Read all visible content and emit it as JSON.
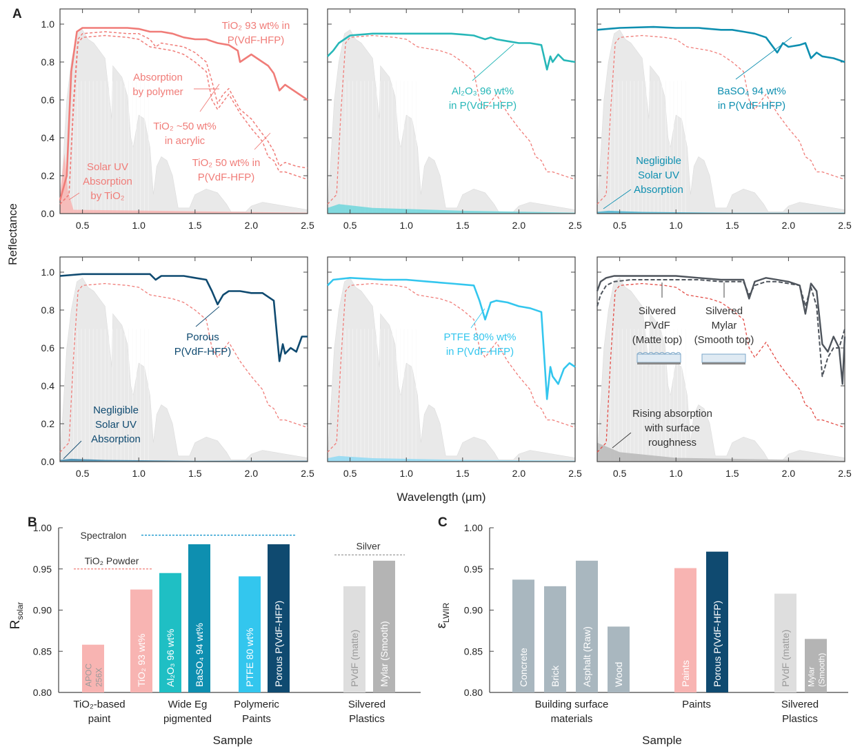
{
  "colors": {
    "salmon": "#f07c78",
    "salmon_fill": "#f8b4b2",
    "teal": "#27b7b8",
    "teal_bar": "#1fbfc4",
    "blue": "#0e8fb0",
    "navy": "#0f4a70",
    "sky": "#33c6ee",
    "gray_dark": "#4e545c",
    "gray_bar": "#a9b7bf",
    "spectrum": "#e9e9e9",
    "spectralon": "#2a9fd0",
    "silver_ref": "#a8a8a8"
  },
  "panel_a": {
    "label": "A",
    "ylabel": "Reflectance",
    "xlabel": "Wavelength (µm)",
    "x_ticks": [
      "0.5",
      "1.0",
      "1.5",
      "2.0",
      "2.5"
    ],
    "y_ticks": [
      "0.0",
      "0.2",
      "0.4",
      "0.6",
      "0.8",
      "1.0"
    ],
    "xlim": [
      0.3,
      2.5
    ],
    "ylim": [
      0,
      1.08
    ],
    "subplots": [
      {
        "key": "tio2",
        "annotations": [
          {
            "lines": [
              "TiO2 93 wt% in",
              "P(VdF-HFP)"
            ],
            "sub": "TiO₂ 93 wt% in"
          },
          {
            "lines": [
              "Absorption",
              "by polymer"
            ]
          },
          {
            "lines": [
              "TiO₂ ~50 wt%",
              "in acrylic"
            ]
          },
          {
            "lines": [
              "TiO₂ 50 wt% in",
              "P(VdF-HFP)"
            ]
          },
          {
            "lines": [
              "Solar UV",
              "Absorption",
              "by TiO₂"
            ]
          }
        ]
      },
      {
        "key": "al2o3",
        "annotations": [
          {
            "lines": [
              "Al₂O₃ 96 wt%",
              "in P(VdF-HFP)"
            ]
          }
        ]
      },
      {
        "key": "baso4",
        "annotations": [
          {
            "lines": [
              "BaSO₄ 94 wt%",
              "in P(VdF-HFP)"
            ]
          },
          {
            "lines": [
              "Negligible",
              "Solar UV",
              "Absorption"
            ]
          }
        ]
      },
      {
        "key": "porous",
        "annotations": [
          {
            "lines": [
              "Porous",
              "P(VdF-HFP)"
            ]
          },
          {
            "lines": [
              "Negligible",
              "Solar UV",
              "Absorption"
            ]
          }
        ]
      },
      {
        "key": "ptfe",
        "annotations": [
          {
            "lines": [
              "PTFE 80% wt%",
              "in P(VdF-HFP)"
            ]
          }
        ]
      },
      {
        "key": "silver",
        "annotations": [
          {
            "lines": [
              "Silvered",
              "PVdF",
              "(Matte top)"
            ]
          },
          {
            "lines": [
              "Silvered",
              "Mylar",
              "(Smooth top)"
            ]
          },
          {
            "lines": [
              "Rising absorption",
              "with surface",
              "roughness"
            ]
          }
        ]
      }
    ]
  },
  "panel_b": {
    "label": "B",
    "ylabel": "R",
    "ylabel_sub": "solar",
    "xlabel": "Sample",
    "ylim": [
      0.8,
      1.0
    ],
    "y_ticks": [
      "0.80",
      "0.85",
      "0.90",
      "0.95",
      "1.00"
    ],
    "bars": [
      {
        "label": "APOC 256X",
        "value": 0.858,
        "color": "#f8b4b2",
        "label_color": "#9a9a9a"
      },
      {
        "label": "TiO₂ 93 wt%",
        "value": 0.925,
        "color": "#f8b4b2",
        "label_color": "#ffffff"
      },
      {
        "label": "Al₂O₃ 96 wt%",
        "value": 0.945,
        "color": "#1fbfc4",
        "label_color": "#ffffff"
      },
      {
        "label": "BaSO₄ 94 wt%",
        "value": 0.98,
        "color": "#0e8fb0",
        "label_color": "#ffffff"
      },
      {
        "label": "PTFE 80 wt%",
        "value": 0.941,
        "color": "#33c6ee",
        "label_color": "#ffffff"
      },
      {
        "label": "Porous P(VdF-HFP)",
        "value": 0.98,
        "color": "#0f4a70",
        "label_color": "#ffffff"
      },
      {
        "label": "PVdF (matte)",
        "value": 0.929,
        "color": "#dedede",
        "label_color": "#9a9a9a"
      },
      {
        "label": "Mylar (Smooth)",
        "value": 0.96,
        "color": "#b4b4b4",
        "label_color": "#ffffff"
      }
    ],
    "groups": [
      {
        "lines": [
          "TiO₂-based",
          "paint"
        ]
      },
      {
        "lines": [
          "Wide Eg",
          "pigmented"
        ]
      },
      {
        "lines": [
          "Polymeric",
          "Paints"
        ]
      },
      {
        "lines": [
          "Silvered",
          "Plastics"
        ]
      }
    ],
    "references": [
      {
        "label": "Spectralon",
        "value": 0.991
      },
      {
        "label": "TiO₂ Powder",
        "value": 0.95
      },
      {
        "label": "Silver",
        "value": 0.967
      }
    ]
  },
  "panel_c": {
    "label": "C",
    "ylabel": "ε",
    "ylabel_sub": "LWIR",
    "xlabel": "Sample",
    "ylim": [
      0.8,
      1.0
    ],
    "y_ticks": [
      "0.80",
      "0.85",
      "0.90",
      "0.95",
      "1.00"
    ],
    "bars": [
      {
        "label": "Concrete",
        "value": 0.937,
        "color": "#a9b7bf",
        "label_color": "#ffffff"
      },
      {
        "label": "Brick",
        "value": 0.929,
        "color": "#a9b7bf",
        "label_color": "#ffffff"
      },
      {
        "label": "Asphalt (Raw)",
        "value": 0.96,
        "color": "#a9b7bf",
        "label_color": "#ffffff"
      },
      {
        "label": "Wood",
        "value": 0.88,
        "color": "#a9b7bf",
        "label_color": "#ffffff"
      },
      {
        "label": "Paints",
        "value": 0.951,
        "color": "#f8b4b2",
        "label_color": "#ffffff"
      },
      {
        "label": "Porous P(VdF-HFP)",
        "value": 0.971,
        "color": "#0f4a70",
        "label_color": "#ffffff"
      },
      {
        "label": "PVdF (matte)",
        "value": 0.92,
        "color": "#dedede",
        "label_color": "#9a9a9a"
      },
      {
        "label": "Mylar (Smooth)",
        "value": 0.865,
        "color": "#b4b4b4",
        "label_color": "#ffffff"
      }
    ],
    "groups": [
      {
        "lines": [
          "Building surface",
          "materials"
        ]
      },
      {
        "lines": [
          "Paints"
        ]
      },
      {
        "lines": [
          "Silvered",
          "Plastics"
        ]
      }
    ]
  },
  "chart_data": [
    {
      "type": "line",
      "panel": "A",
      "xlabel": "Wavelength (µm)",
      "ylabel": "Reflectance",
      "xlim": [
        0.3,
        2.5
      ],
      "ylim": [
        0,
        1.08
      ],
      "series": [
        {
          "name": "TiO₂ 93 wt% in P(VdF-HFP)",
          "subplot": 0,
          "x": [
            0.3,
            0.36,
            0.4,
            0.45,
            0.5,
            0.7,
            0.9,
            1.0,
            1.1,
            1.2,
            1.3,
            1.4,
            1.5,
            1.6,
            1.65,
            1.7,
            1.8,
            1.88,
            1.9,
            2.0,
            2.1,
            2.15,
            2.2,
            2.25,
            2.3,
            2.4,
            2.5
          ],
          "y": [
            0.07,
            0.2,
            0.75,
            0.96,
            0.98,
            0.98,
            0.98,
            0.975,
            0.96,
            0.96,
            0.95,
            0.93,
            0.92,
            0.92,
            0.91,
            0.9,
            0.89,
            0.86,
            0.8,
            0.84,
            0.8,
            0.78,
            0.74,
            0.65,
            0.68,
            0.64,
            0.6
          ]
        },
        {
          "name": "TiO₂ ~50 wt% in acrylic",
          "subplot": 0,
          "x": [
            0.3,
            0.38,
            0.42,
            0.46,
            0.5,
            0.7,
            0.9,
            1.0,
            1.1,
            1.15,
            1.2,
            1.3,
            1.4,
            1.5,
            1.6,
            1.65,
            1.7,
            1.75,
            1.8,
            1.9,
            2.0,
            2.1,
            2.15,
            2.2,
            2.25,
            2.3,
            2.4,
            2.5
          ],
          "y": [
            0.05,
            0.1,
            0.6,
            0.92,
            0.95,
            0.96,
            0.95,
            0.95,
            0.92,
            0.88,
            0.9,
            0.89,
            0.88,
            0.85,
            0.8,
            0.7,
            0.58,
            0.63,
            0.66,
            0.55,
            0.5,
            0.42,
            0.38,
            0.33,
            0.25,
            0.27,
            0.25,
            0.24
          ]
        },
        {
          "name": "TiO₂ 50 wt% in P(VdF-HFP)",
          "subplot": 0,
          "x": [
            0.3,
            0.38,
            0.42,
            0.46,
            0.5,
            0.7,
            0.9,
            1.0,
            1.1,
            1.2,
            1.3,
            1.4,
            1.5,
            1.6,
            1.65,
            1.7,
            1.8,
            1.9,
            2.0,
            2.1,
            2.15,
            2.2,
            2.25,
            2.3,
            2.4,
            2.5
          ],
          "y": [
            0.05,
            0.1,
            0.55,
            0.9,
            0.93,
            0.94,
            0.93,
            0.92,
            0.88,
            0.87,
            0.86,
            0.84,
            0.8,
            0.75,
            0.6,
            0.55,
            0.63,
            0.53,
            0.45,
            0.38,
            0.3,
            0.28,
            0.22,
            0.22,
            0.2,
            0.18
          ]
        },
        {
          "name": "Al₂O₃ 96 wt% in P(VdF-HFP)",
          "subplot": 1,
          "x": [
            0.3,
            0.35,
            0.4,
            0.5,
            0.7,
            0.9,
            1.0,
            1.2,
            1.4,
            1.5,
            1.6,
            1.65,
            1.7,
            1.75,
            1.8,
            1.9,
            2.0,
            2.1,
            2.2,
            2.25,
            2.28,
            2.3,
            2.35,
            2.4,
            2.5
          ],
          "y": [
            0.83,
            0.86,
            0.9,
            0.94,
            0.95,
            0.95,
            0.95,
            0.95,
            0.95,
            0.945,
            0.94,
            0.93,
            0.92,
            0.93,
            0.92,
            0.91,
            0.9,
            0.9,
            0.89,
            0.76,
            0.83,
            0.8,
            0.84,
            0.81,
            0.8
          ]
        },
        {
          "name": "BaSO₄ 94 wt% in P(VdF-HFP)",
          "subplot": 2,
          "x": [
            0.3,
            0.5,
            0.8,
            1.0,
            1.2,
            1.4,
            1.5,
            1.6,
            1.7,
            1.8,
            1.9,
            1.95,
            2.0,
            2.1,
            2.15,
            2.2,
            2.25,
            2.3,
            2.4,
            2.5
          ],
          "y": [
            0.97,
            0.98,
            0.985,
            0.98,
            0.98,
            0.97,
            0.97,
            0.96,
            0.95,
            0.93,
            0.85,
            0.9,
            0.88,
            0.89,
            0.9,
            0.82,
            0.85,
            0.83,
            0.82,
            0.8
          ]
        },
        {
          "name": "Porous P(VdF-HFP)",
          "subplot": 3,
          "x": [
            0.3,
            0.5,
            0.8,
            1.0,
            1.1,
            1.15,
            1.2,
            1.4,
            1.5,
            1.6,
            1.65,
            1.7,
            1.75,
            1.8,
            1.9,
            2.0,
            2.1,
            2.2,
            2.25,
            2.28,
            2.3,
            2.35,
            2.4,
            2.45,
            2.5
          ],
          "y": [
            0.98,
            0.99,
            0.99,
            0.99,
            0.99,
            0.96,
            0.98,
            0.98,
            0.97,
            0.96,
            0.9,
            0.83,
            0.88,
            0.9,
            0.9,
            0.89,
            0.89,
            0.85,
            0.53,
            0.62,
            0.57,
            0.6,
            0.58,
            0.66,
            0.66
          ]
        },
        {
          "name": "PTFE 80% wt% in P(VdF-HFP)",
          "subplot": 4,
          "x": [
            0.3,
            0.35,
            0.5,
            0.8,
            1.0,
            1.2,
            1.4,
            1.6,
            1.65,
            1.7,
            1.75,
            1.8,
            1.9,
            2.0,
            2.1,
            2.2,
            2.25,
            2.28,
            2.3,
            2.35,
            2.4,
            2.45,
            2.5
          ],
          "y": [
            0.93,
            0.96,
            0.97,
            0.96,
            0.96,
            0.95,
            0.94,
            0.93,
            0.85,
            0.75,
            0.84,
            0.85,
            0.84,
            0.82,
            0.81,
            0.79,
            0.33,
            0.5,
            0.45,
            0.41,
            0.49,
            0.52,
            0.5
          ]
        },
        {
          "name": "Silvered PVdF (Matte top)",
          "subplot": 5,
          "x": [
            0.3,
            0.33,
            0.38,
            0.45,
            0.6,
            0.8,
            1.0,
            1.2,
            1.4,
            1.6,
            1.65,
            1.7,
            1.8,
            1.9,
            2.0,
            2.1,
            2.15,
            2.2,
            2.25,
            2.3,
            2.35,
            2.4,
            2.45,
            2.48,
            2.5
          ],
          "y": [
            0.9,
            0.95,
            0.97,
            0.98,
            0.98,
            0.98,
            0.98,
            0.97,
            0.96,
            0.96,
            0.86,
            0.95,
            0.97,
            0.96,
            0.95,
            0.93,
            0.78,
            0.94,
            0.9,
            0.62,
            0.58,
            0.66,
            0.6,
            0.41,
            0.66
          ]
        },
        {
          "name": "Silvered Mylar (Smooth top)",
          "subplot": 5,
          "x": [
            0.3,
            0.33,
            0.38,
            0.45,
            0.6,
            0.8,
            1.0,
            1.2,
            1.4,
            1.6,
            1.65,
            1.7,
            1.8,
            1.9,
            2.0,
            2.1,
            2.15,
            2.2,
            2.25,
            2.3,
            2.35,
            2.4,
            2.45,
            2.5
          ],
          "y": [
            0.82,
            0.88,
            0.93,
            0.95,
            0.96,
            0.96,
            0.96,
            0.96,
            0.95,
            0.95,
            0.88,
            0.93,
            0.95,
            0.95,
            0.94,
            0.93,
            0.82,
            0.92,
            0.82,
            0.45,
            0.55,
            0.6,
            0.6,
            0.7
          ]
        }
      ]
    },
    {
      "type": "bar",
      "panel": "B",
      "categories": [
        "APOC 256X",
        "TiO₂ 93 wt%",
        "Al₂O₃ 96 wt%",
        "BaSO₄ 94 wt%",
        "PTFE 80 wt%",
        "Porous P(VdF-HFP)",
        "PVdF (matte)",
        "Mylar (Smooth)"
      ],
      "values": [
        0.858,
        0.925,
        0.945,
        0.98,
        0.941,
        0.98,
        0.929,
        0.96
      ],
      "xlabel": "Sample",
      "ylabel": "R_solar",
      "ylim": [
        0.8,
        1.0
      ]
    },
    {
      "type": "bar",
      "panel": "C",
      "categories": [
        "Concrete",
        "Brick",
        "Asphalt (Raw)",
        "Wood",
        "Paints",
        "Porous P(VdF-HFP)",
        "PVdF (matte)",
        "Mylar (Smooth)"
      ],
      "values": [
        0.937,
        0.929,
        0.96,
        0.88,
        0.951,
        0.971,
        0.92,
        0.865
      ],
      "xlabel": "Sample",
      "ylabel": "ε_LWIR",
      "ylim": [
        0.8,
        1.0
      ]
    }
  ]
}
